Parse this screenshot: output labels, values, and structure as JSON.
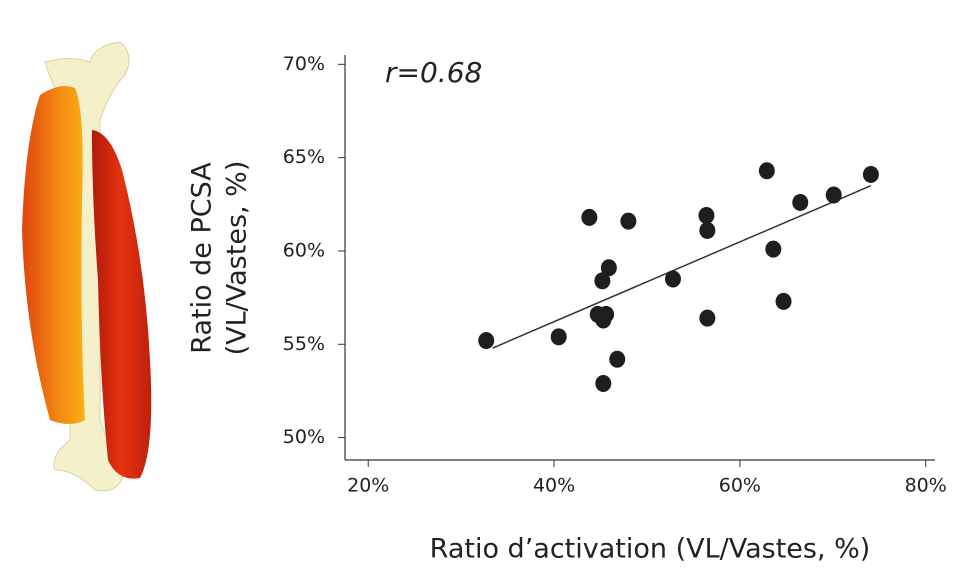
{
  "chart_data": {
    "type": "scatter",
    "annotation": "r=0.68",
    "x_label": "Ratio d’activation (VL/Vastes, %)",
    "y_label": [
      "Ratio de PCSA",
      "(VL/Vastes, %)"
    ],
    "color": "#1e1e1e",
    "x": [
      32.7,
      40.5,
      43.8,
      45.2,
      45.9,
      44.7,
      45.6,
      45.3,
      45.3,
      46.8,
      48.0,
      52.8,
      56.4,
      56.5,
      56.5,
      62.9,
      63.6,
      64.7,
      66.5,
      70.1,
      74.1
    ],
    "values": [
      55.2,
      55.4,
      61.8,
      58.4,
      59.1,
      56.6,
      56.6,
      56.3,
      52.9,
      54.2,
      61.6,
      58.5,
      61.9,
      61.1,
      56.4,
      64.3,
      60.1,
      57.3,
      62.6,
      63.0,
      64.1
    ],
    "trendline": {
      "x": [
        33.4,
        74.1
      ],
      "y": [
        54.8,
        63.5
      ]
    },
    "xlim": [
      17.5,
      81
    ],
    "ylim": [
      48.8,
      70.5
    ],
    "xticks": [
      {
        "value": 20,
        "label": "20%"
      },
      {
        "value": 40,
        "label": "40%"
      },
      {
        "value": 60,
        "label": "60%"
      },
      {
        "value": 80,
        "label": "80%"
      }
    ],
    "yticks": [
      {
        "value": 50,
        "label": "50%"
      },
      {
        "value": 55,
        "label": "55%"
      },
      {
        "value": 60,
        "label": "60%"
      },
      {
        "value": 65,
        "label": "65%"
      },
      {
        "value": 70,
        "label": "70%"
      }
    ]
  }
}
